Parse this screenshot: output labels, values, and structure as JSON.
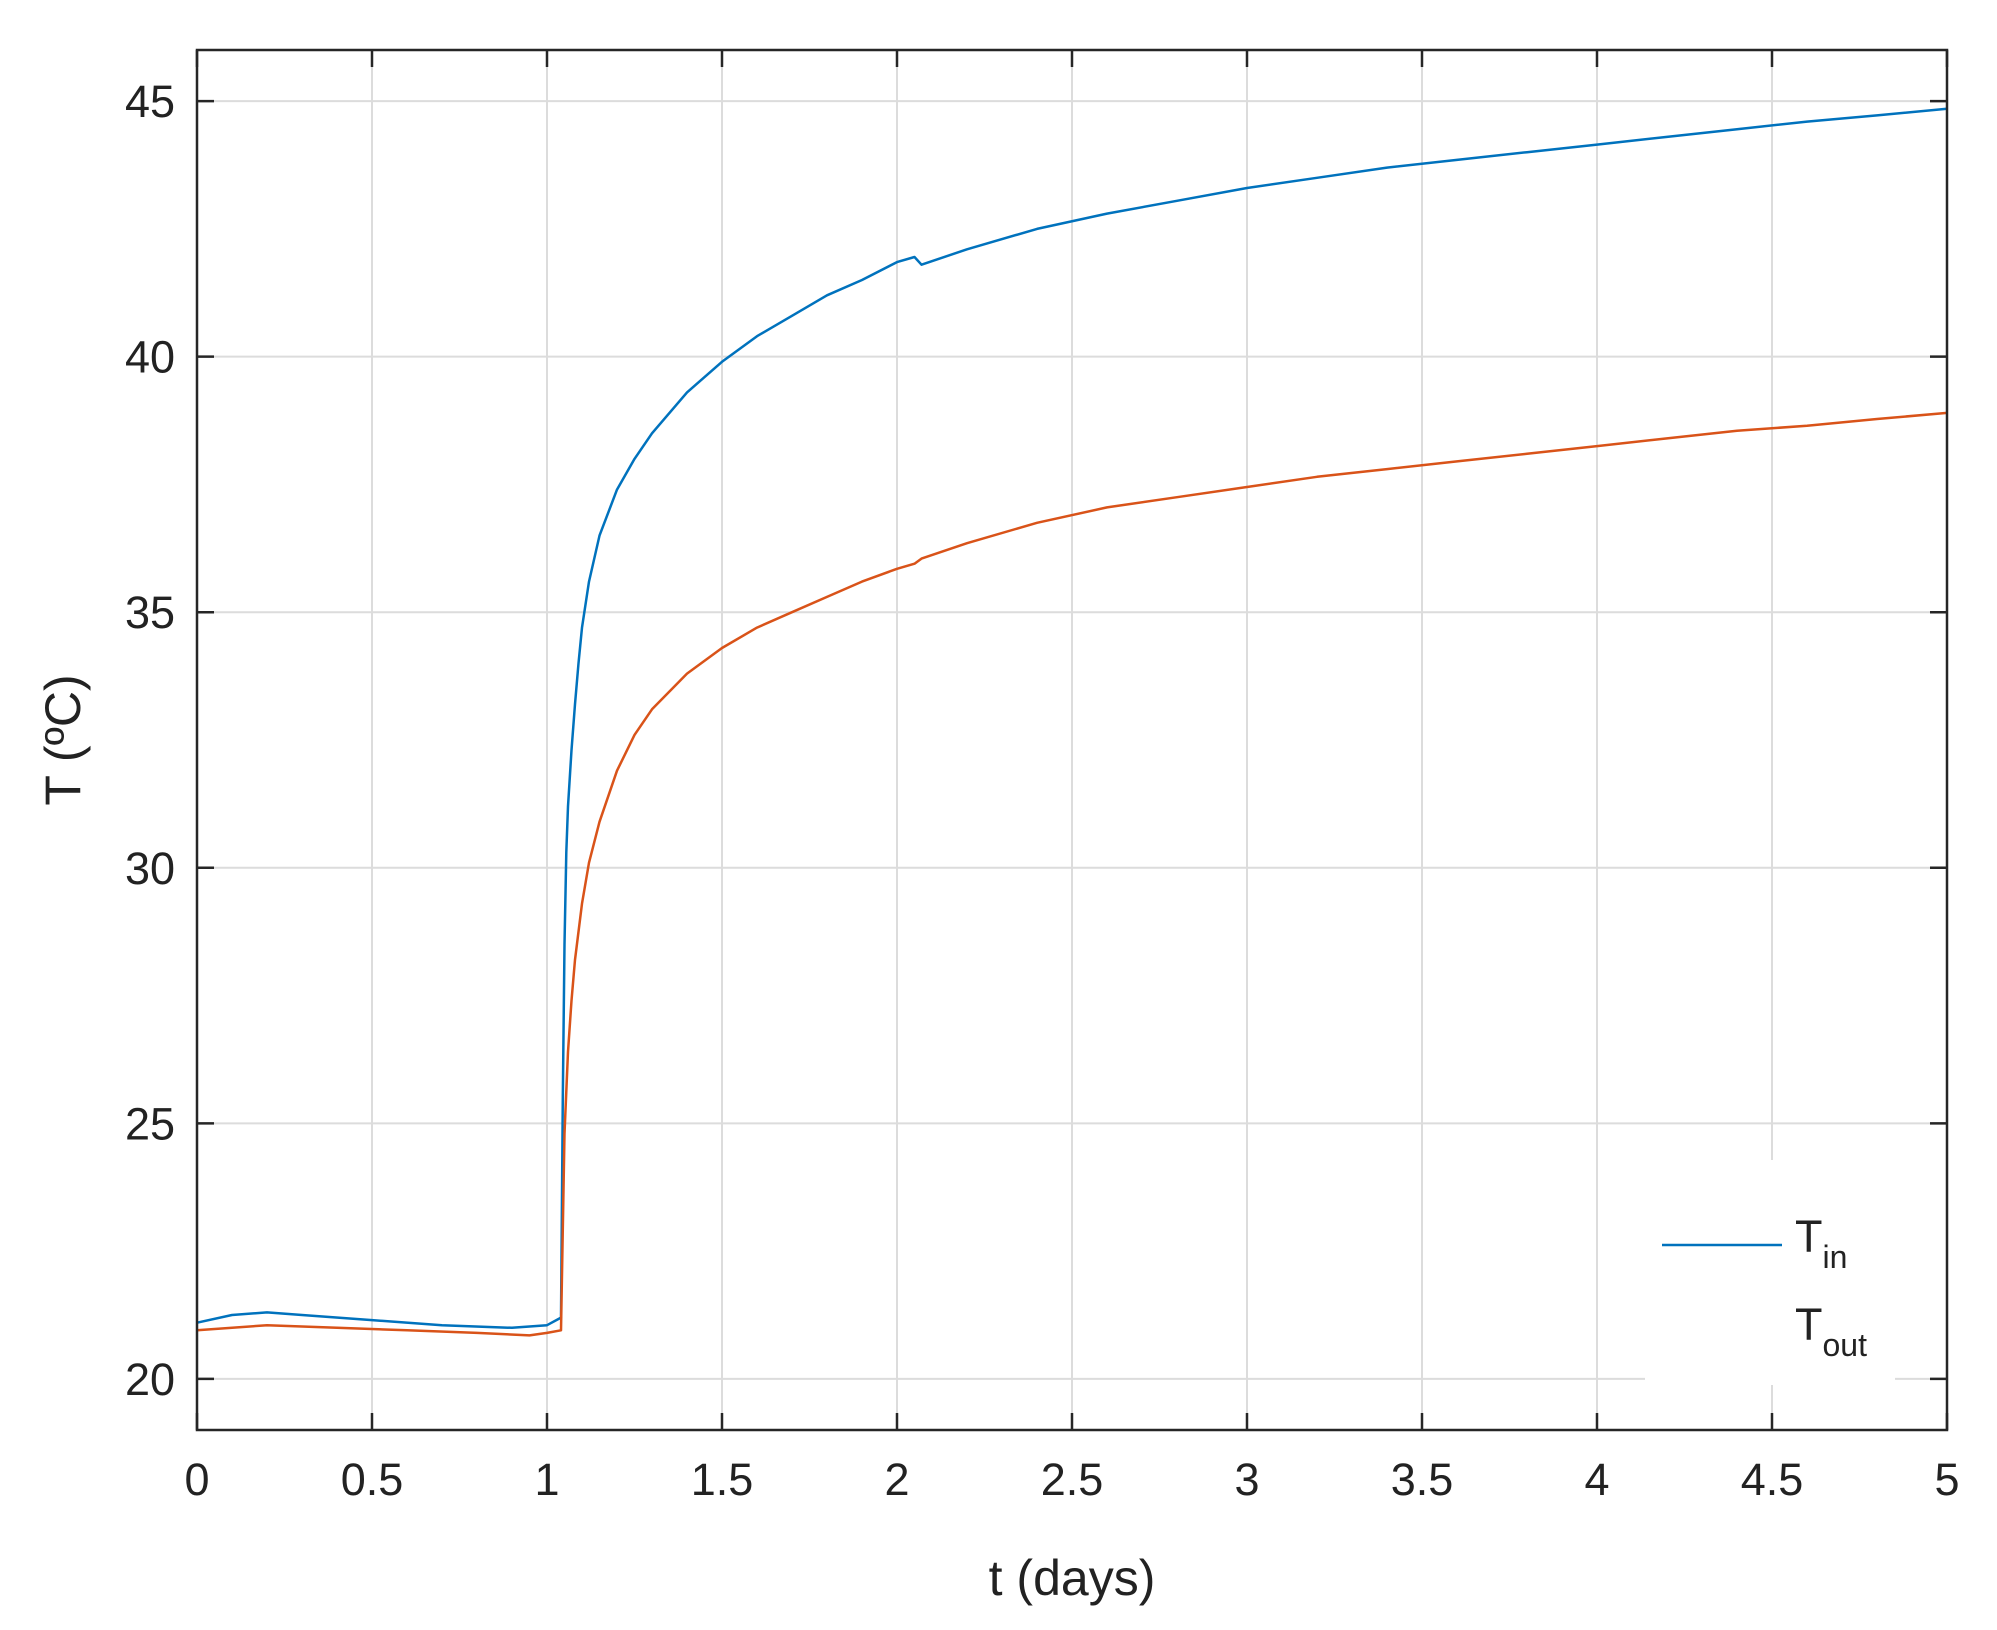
{
  "chart_data": {
    "type": "line",
    "xlabel": "t (days)",
    "ylabel": "T (ºC)",
    "xlim": [
      0,
      5
    ],
    "ylim": [
      19,
      46
    ],
    "xticks": [
      0,
      0.5,
      1,
      1.5,
      2,
      2.5,
      3,
      3.5,
      4,
      4.5,
      5
    ],
    "xtick_labels": [
      "0",
      "0.5",
      "1",
      "1.5",
      "2",
      "2.5",
      "3",
      "3.5",
      "4",
      "4.5",
      "5"
    ],
    "yticks": [
      20,
      25,
      30,
      35,
      40,
      45
    ],
    "ytick_labels": [
      "20",
      "25",
      "30",
      "35",
      "40",
      "45"
    ],
    "grid": true,
    "legend_position": "bottom-right",
    "series": [
      {
        "name": "T",
        "subscript": "in",
        "color": "#0072BD",
        "x": [
          0,
          0.1,
          0.2,
          0.3,
          0.5,
          0.7,
          0.9,
          1.0,
          1.04,
          1.045,
          1.05,
          1.055,
          1.06,
          1.07,
          1.08,
          1.09,
          1.1,
          1.12,
          1.15,
          1.2,
          1.25,
          1.3,
          1.4,
          1.5,
          1.6,
          1.7,
          1.8,
          1.9,
          2.0,
          2.05,
          2.07,
          2.2,
          2.4,
          2.6,
          2.8,
          3.0,
          3.2,
          3.4,
          3.6,
          3.8,
          4.0,
          4.2,
          4.4,
          4.6,
          4.8,
          5.0
        ],
        "values": [
          21.1,
          21.25,
          21.3,
          21.25,
          21.15,
          21.05,
          21.0,
          21.05,
          21.2,
          25.5,
          28.5,
          30.3,
          31.2,
          32.3,
          33.2,
          34.0,
          34.7,
          35.6,
          36.5,
          37.4,
          38.0,
          38.5,
          39.3,
          39.9,
          40.4,
          40.8,
          41.2,
          41.5,
          41.85,
          41.95,
          41.8,
          42.1,
          42.5,
          42.8,
          43.05,
          43.3,
          43.5,
          43.7,
          43.85,
          44.0,
          44.15,
          44.3,
          44.45,
          44.6,
          44.72,
          44.85
        ]
      },
      {
        "name": "T",
        "subscript": "out",
        "color": "#D95319",
        "x": [
          0,
          0.2,
          0.4,
          0.6,
          0.8,
          0.95,
          1.0,
          1.04,
          1.05,
          1.06,
          1.07,
          1.08,
          1.1,
          1.12,
          1.15,
          1.2,
          1.25,
          1.3,
          1.4,
          1.5,
          1.6,
          1.7,
          1.8,
          1.9,
          2.0,
          2.05,
          2.07,
          2.2,
          2.4,
          2.6,
          2.8,
          3.0,
          3.2,
          3.4,
          3.6,
          3.8,
          4.0,
          4.2,
          4.4,
          4.6,
          4.8,
          5.0
        ],
        "values": [
          20.95,
          21.05,
          21.0,
          20.95,
          20.9,
          20.85,
          20.9,
          20.95,
          24.8,
          26.4,
          27.4,
          28.2,
          29.3,
          30.1,
          30.9,
          31.9,
          32.6,
          33.1,
          33.8,
          34.3,
          34.7,
          35.0,
          35.3,
          35.6,
          35.85,
          35.95,
          36.05,
          36.35,
          36.75,
          37.05,
          37.25,
          37.45,
          37.65,
          37.8,
          37.95,
          38.1,
          38.25,
          38.4,
          38.55,
          38.65,
          38.78,
          38.9
        ]
      }
    ]
  }
}
